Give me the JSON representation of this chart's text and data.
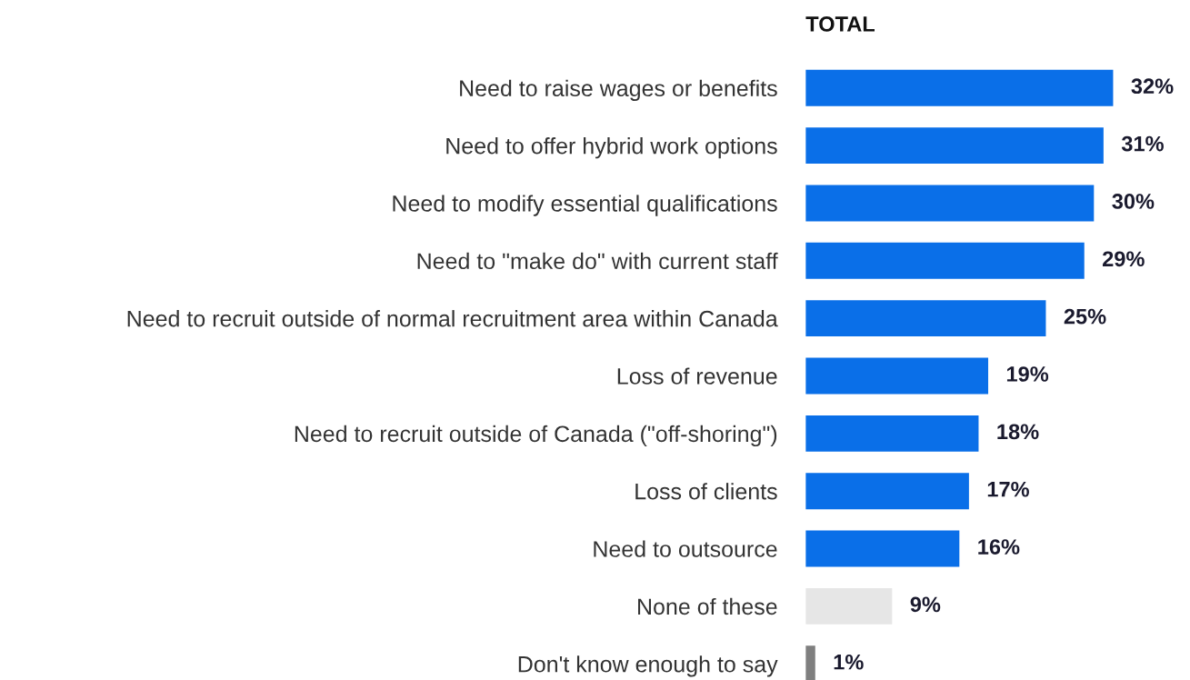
{
  "chart_data": {
    "type": "bar",
    "orientation": "horizontal",
    "title": "TOTAL",
    "categories": [
      "Need to raise wages or benefits",
      "Need to offer hybrid work options",
      "Need to modify essential qualifications",
      "Need to \"make do\" with current staff",
      "Need to recruit outside of normal recruitment area within Canada",
      "Loss of revenue",
      "Need to recruit outside of Canada (\"off-shoring\")",
      "Loss of clients",
      "Need to outsource",
      "None of these",
      "Don't know enough to say"
    ],
    "values": [
      32,
      31,
      30,
      29,
      25,
      19,
      18,
      17,
      16,
      9,
      1
    ],
    "colors": [
      "#0a6fe8",
      "#0a6fe8",
      "#0a6fe8",
      "#0a6fe8",
      "#0a6fe8",
      "#0a6fe8",
      "#0a6fe8",
      "#0a6fe8",
      "#0a6fe8",
      "#e6e6e6",
      "#7f7f7f"
    ],
    "value_labels": [
      "32%",
      "31%",
      "30%",
      "29%",
      "25%",
      "19%",
      "18%",
      "17%",
      "16%",
      "9%",
      "1%"
    ],
    "grid": false,
    "legend": false
  }
}
